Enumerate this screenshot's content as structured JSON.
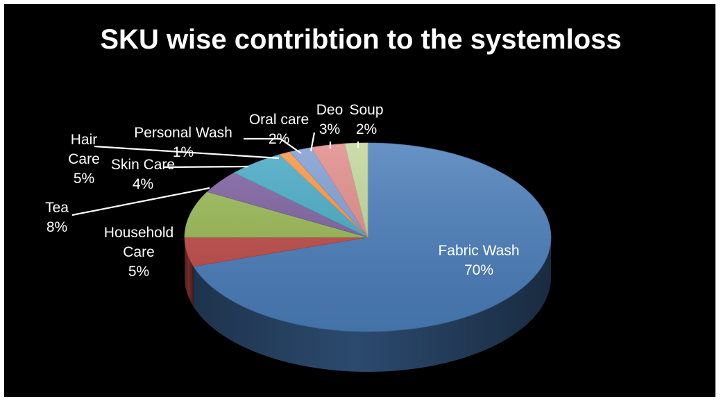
{
  "chart_data": {
    "type": "pie",
    "title": "SKU wise contribtion to the systemloss",
    "pie_style": "3d",
    "background_color": "#000000",
    "slices": [
      {
        "name": "Fabric Wash",
        "value": 70,
        "label_lines": [
          "Fabric Wash",
          "70%"
        ],
        "color": "#4a7ebb"
      },
      {
        "name": "Household Care",
        "value": 5,
        "label_lines": [
          "Household",
          "Care",
          "5%"
        ],
        "color": "#be4b48"
      },
      {
        "name": "Tea",
        "value": 8,
        "label_lines": [
          "Tea",
          "8%"
        ],
        "color": "#98b954"
      },
      {
        "name": "Skin Care",
        "value": 4,
        "label_lines": [
          "Skin Care",
          "4%"
        ],
        "color": "#7d60a0"
      },
      {
        "name": "Hair Care",
        "value": 5,
        "label_lines": [
          "Hair",
          "Care",
          "5%"
        ],
        "color": "#46aac5"
      },
      {
        "name": "Personal Wash",
        "value": 1,
        "label_lines": [
          "Personal Wash",
          "1%"
        ],
        "color": "#f79646"
      },
      {
        "name": "Oral care",
        "value": 2,
        "label_lines": [
          "Oral care",
          "2%"
        ],
        "color": "#7f9ed3"
      },
      {
        "name": "Deo",
        "value": 3,
        "label_lines": [
          "Deo",
          "3%"
        ],
        "color": "#e08c8a"
      },
      {
        "name": "Soup",
        "value": 2,
        "label_lines": [
          "Soup",
          "2%"
        ],
        "color": "#c3d69b"
      }
    ]
  }
}
